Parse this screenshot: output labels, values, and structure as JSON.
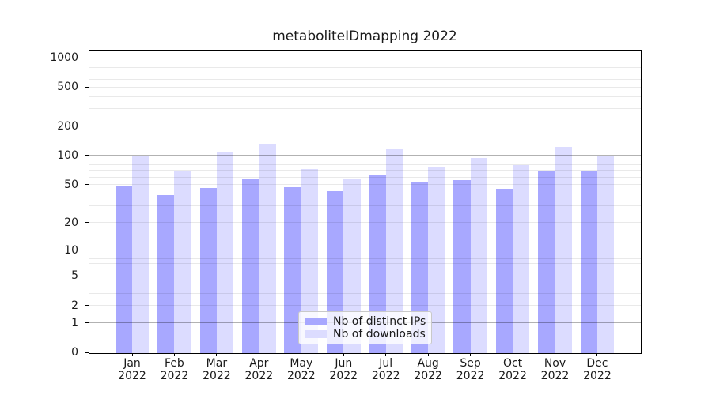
{
  "figure": {
    "title": "metaboliteIDmapping 2022"
  },
  "chart_data": {
    "type": "bar",
    "title": "metaboliteIDmapping 2022",
    "categories": [
      "Jan 2022",
      "Feb 2022",
      "Mar 2022",
      "Apr 2022",
      "May 2022",
      "Jun 2022",
      "Jul 2022",
      "Aug 2022",
      "Sep 2022",
      "Oct 2022",
      "Nov 2022",
      "Dec 2022"
    ],
    "series": [
      {
        "name": "Nb of distinct IPs",
        "values": [
          49,
          39,
          46,
          57,
          47,
          43,
          62,
          54,
          56,
          45,
          68,
          68
        ]
      },
      {
        "name": "Nb of downloads",
        "values": [
          100,
          69,
          107,
          131,
          73,
          58,
          116,
          77,
          95,
          80,
          122,
          98
        ]
      }
    ],
    "xlabel": "",
    "ylabel": "",
    "yscale": "log1p",
    "yticks": [
      0,
      1,
      2,
      5,
      10,
      20,
      50,
      100,
      200,
      500,
      1000
    ],
    "ylim": [
      0,
      1200
    ],
    "grid": true,
    "legend_position": "lower-center"
  },
  "colors": {
    "bar_distinct_ips": "#a8a8ff",
    "bar_downloads": "#dcdcff",
    "grid_major": "#b3b3b3",
    "grid_minor": "#e9e9e9",
    "axis": "#000000",
    "text": "#1a1a1a"
  }
}
